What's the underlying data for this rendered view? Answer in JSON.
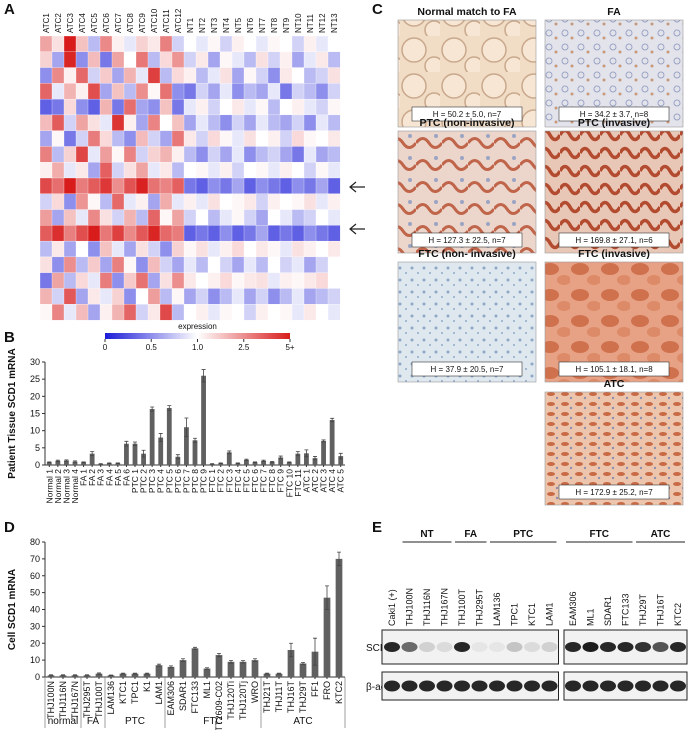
{
  "panel_letters": [
    "A",
    "B",
    "C",
    "D",
    "E"
  ],
  "chart_data": [
    {
      "type": "heatmap",
      "categories": [
        "ATC1",
        "ATC2",
        "ATC3",
        "ATC4",
        "ATC5",
        "ATC6",
        "ATC7",
        "ATC8",
        "ATC9",
        "ATC10",
        "ATC11",
        "ATC12",
        "NT1",
        "NT2",
        "NT3",
        "NT4",
        "NT5",
        "NT6",
        "NT7",
        "NT8",
        "NT9",
        "NT10",
        "NT11",
        "NT12",
        "NT13"
      ],
      "values": [
        [
          2.2,
          1.4,
          5.5,
          1.8,
          0.7,
          2.6,
          1.2,
          0.9,
          1.6,
          1.3,
          2.8,
          0.8,
          1.0,
          0.9,
          1.1,
          0.8,
          1.2,
          1.0,
          0.9,
          1.1,
          1.0,
          0.8,
          1.2,
          0.9,
          1.0
        ],
        [
          1.6,
          0.6,
          4.8,
          0.5,
          1.9,
          0.4,
          2.2,
          1.0,
          3.0,
          0.7,
          1.5,
          2.4,
          0.8,
          1.3,
          0.6,
          1.1,
          0.9,
          0.7,
          1.4,
          0.8,
          1.2,
          0.6,
          0.9,
          1.3,
          0.7
        ],
        [
          0.5,
          2.6,
          1.2,
          3.3,
          0.8,
          1.7,
          0.6,
          2.0,
          0.9,
          4.2,
          0.7,
          1.5,
          1.2,
          0.7,
          0.9,
          1.4,
          0.6,
          1.1,
          0.8,
          0.5,
          1.3,
          1.0,
          0.7,
          0.8,
          1.4
        ],
        [
          3.4,
          0.9,
          2.0,
          1.2,
          3.9,
          0.6,
          1.8,
          0.7,
          2.5,
          1.1,
          3.1,
          0.5,
          0.4,
          0.8,
          0.6,
          0.9,
          0.5,
          0.7,
          0.6,
          0.9,
          0.4,
          0.8,
          0.7,
          0.5,
          0.8
        ],
        [
          0.3,
          0.4,
          1.5,
          0.5,
          0.3,
          2.0,
          0.4,
          3.2,
          0.6,
          0.5,
          1.8,
          0.4,
          0.9,
          1.2,
          0.8,
          1.0,
          1.3,
          0.9,
          1.1,
          0.7,
          1.0,
          1.2,
          0.9,
          0.8,
          1.1
        ],
        [
          1.9,
          3.6,
          0.8,
          2.2,
          1.4,
          0.9,
          4.5,
          1.2,
          0.6,
          2.7,
          1.0,
          1.8,
          0.6,
          0.9,
          0.7,
          0.5,
          0.8,
          0.6,
          0.9,
          0.7,
          0.6,
          0.8,
          0.5,
          0.9,
          0.7
        ],
        [
          0.6,
          1.1,
          0.4,
          0.8,
          2.9,
          1.5,
          0.7,
          0.5,
          1.9,
          0.8,
          0.6,
          3.0,
          1.3,
          0.8,
          1.5,
          1.1,
          0.9,
          1.4,
          1.0,
          1.2,
          0.8,
          1.5,
          1.1,
          1.0,
          1.3
        ],
        [
          2.8,
          0.7,
          1.6,
          4.1,
          0.9,
          2.3,
          1.1,
          2.7,
          0.8,
          1.6,
          2.0,
          1.2,
          0.7,
          0.5,
          0.8,
          0.6,
          0.9,
          0.5,
          0.7,
          0.8,
          0.6,
          0.4,
          0.9,
          0.6,
          0.7
        ],
        [
          1.2,
          2.1,
          0.9,
          1.3,
          0.6,
          3.5,
          0.8,
          1.4,
          2.2,
          0.9,
          1.3,
          0.7,
          1.0,
          1.1,
          0.9,
          1.2,
          0.8,
          1.0,
          1.1,
          0.9,
          1.2,
          1.0,
          0.8,
          1.1,
          0.9
        ],
        [
          4.0,
          3.2,
          5.2,
          2.9,
          3.6,
          4.4,
          2.5,
          3.8,
          4.9,
          3.1,
          2.7,
          3.5,
          0.4,
          0.3,
          0.5,
          0.4,
          0.6,
          0.3,
          0.5,
          0.4,
          0.3,
          0.5,
          0.4,
          0.6,
          0.3
        ],
        [
          0.8,
          1.5,
          0.5,
          2.4,
          1.1,
          0.7,
          3.3,
          0.9,
          1.2,
          0.6,
          2.1,
          0.9,
          1.2,
          0.9,
          1.4,
          1.0,
          1.1,
          1.3,
          0.8,
          1.2,
          1.0,
          1.1,
          1.4,
          0.9,
          1.2
        ],
        [
          2.3,
          0.6,
          1.8,
          0.9,
          2.6,
          1.4,
          0.8,
          2.0,
          0.7,
          3.4,
          1.1,
          2.2,
          0.8,
          1.0,
          0.7,
          0.9,
          1.1,
          0.8,
          0.6,
          1.0,
          0.9,
          0.7,
          0.8,
          1.0,
          0.9
        ],
        [
          3.6,
          4.6,
          2.8,
          3.9,
          5.1,
          3.0,
          4.2,
          2.6,
          3.7,
          4.8,
          3.3,
          2.9,
          0.3,
          0.4,
          0.3,
          0.5,
          0.3,
          0.4,
          0.6,
          0.3,
          0.4,
          0.3,
          0.5,
          0.4,
          0.3
        ],
        [
          0.7,
          1.3,
          0.6,
          1.0,
          0.5,
          1.8,
          0.9,
          0.6,
          1.4,
          0.8,
          0.5,
          1.6,
          1.1,
          1.4,
          0.9,
          1.2,
          1.5,
          1.0,
          1.3,
          1.1,
          0.9,
          1.4,
          1.2,
          1.0,
          1.3
        ],
        [
          1.4,
          0.5,
          2.5,
          0.7,
          1.7,
          0.6,
          2.8,
          1.1,
          0.5,
          1.9,
          0.8,
          0.6,
          0.9,
          0.7,
          1.0,
          0.8,
          0.6,
          0.9,
          0.7,
          1.0,
          0.8,
          0.9,
          0.6,
          0.8,
          1.0
        ],
        [
          0.4,
          2.2,
          0.7,
          1.5,
          0.9,
          2.9,
          0.5,
          1.7,
          3.1,
          0.6,
          1.4,
          2.5,
          1.3,
          1.0,
          1.2,
          1.5,
          1.1,
          1.3,
          1.4,
          0.9,
          1.2,
          1.1,
          1.3,
          1.5,
          1.0
        ],
        [
          2.0,
          0.8,
          3.7,
          0.6,
          1.3,
          0.9,
          1.6,
          0.5,
          1.0,
          2.3,
          0.7,
          1.1,
          0.6,
          0.8,
          0.5,
          0.7,
          0.9,
          0.6,
          0.8,
          0.5,
          0.7,
          0.9,
          0.6,
          0.7,
          0.8
        ],
        [
          1.1,
          2.7,
          0.9,
          1.9,
          0.6,
          1.2,
          2.0,
          3.4,
          0.8,
          1.3,
          4.0,
          0.7,
          1.0,
          1.2,
          0.9,
          1.1,
          1.0,
          0.8,
          1.2,
          1.0,
          1.1,
          0.9,
          1.3,
          1.0,
          0.9
        ]
      ],
      "colorbar_label": "expression",
      "colorbar_ticks": [
        0,
        0.5,
        {
          "value": 1,
          "label": "1.0"
        },
        2.5,
        {
          "value": 5,
          "label": "5+"
        }
      ],
      "colors": [
        "#1c1cd8",
        "#ffffff",
        "#d81c1c"
      ]
    },
    {
      "type": "bar",
      "y_label": "Patient Tissue SCD1 mRNA",
      "categories": [
        "Normal 1",
        "Normal 2",
        "Normal 3",
        "Normal 4",
        "FA 1",
        "FA 2",
        "FA 3",
        "FA 4",
        "FA 5",
        "FA 6",
        "PTC 1",
        "PTC 2",
        "PTC 3",
        "PTC 4",
        "PTC 5",
        "PTC 6",
        "PTC 7",
        "PTC 8",
        "PTC 9",
        "FTC 1",
        "FTC 2",
        "FTC 3",
        "FTC 4",
        "FTC 5",
        "FTC 6",
        "FTC 7",
        "FTC 8",
        "FTC 9",
        "FTC 10",
        "FTC 11",
        "ATC 1",
        "ATC 2",
        "ATC 3",
        "ATC 4",
        "ATC 5"
      ],
      "values": [
        0.8,
        1.2,
        1.3,
        1.0,
        0.8,
        3.3,
        0.3,
        0.5,
        0.5,
        6.2,
        6.2,
        3.3,
        16.3,
        8.0,
        16.6,
        2.4,
        11.0,
        7.2,
        26.0,
        0.3,
        0.5,
        3.7,
        0.5,
        1.5,
        0.8,
        1.2,
        0.9,
        2.2,
        0.8,
        3.3,
        3.4,
        2.0,
        7.0,
        13.1,
        2.6
      ],
      "errors": [
        0.1,
        0.2,
        0.2,
        0.2,
        0.1,
        0.6,
        0.1,
        0.1,
        0.1,
        0.7,
        0.5,
        1.0,
        0.6,
        1.2,
        0.7,
        0.6,
        2.7,
        0.6,
        1.8,
        0.1,
        0.1,
        0.4,
        0.1,
        0.2,
        0.1,
        0.2,
        0.1,
        0.4,
        0.1,
        0.6,
        1.0,
        0.5,
        0.3,
        0.5,
        0.8
      ],
      "color": "#606060",
      "ylim": [
        0,
        30
      ],
      "yticks": [
        0,
        5,
        10,
        15,
        20,
        25,
        30
      ]
    },
    {
      "type": "bar",
      "y_label": "Cell SCD1 mRNA",
      "groups": [
        {
          "name": "normal",
          "categories": [
            "THJ100N",
            "THJ116N",
            "THJ167N"
          ]
        },
        {
          "name": "FA",
          "categories": [
            "THJ295T",
            "THJ100T"
          ]
        },
        {
          "name": "PTC",
          "categories": [
            "LAM136",
            "KTC1",
            "TPC1",
            "K1",
            "LAM1"
          ]
        },
        {
          "name": "FTC",
          "categories": [
            "EAM306",
            "SDAR1",
            "FTC133",
            "ML1",
            "TT2609-C02",
            "THJ120Ti",
            "THJ120Tj",
            "WRO"
          ]
        },
        {
          "name": "ATC",
          "categories": [
            "THJ21T",
            "THJ11T",
            "THJ16T",
            "THJ29T",
            "FF1",
            "FRO",
            "KTC2"
          ]
        }
      ],
      "values": [
        1,
        1,
        1,
        1,
        2,
        1,
        2,
        2,
        2,
        7,
        6,
        10,
        17,
        5,
        13,
        9,
        9,
        10,
        2,
        2,
        16,
        8,
        15,
        47,
        70
      ],
      "errors": [
        0.3,
        0.3,
        0.3,
        0.3,
        0.4,
        0.2,
        0.3,
        0.3,
        0.3,
        0.6,
        0.6,
        0.8,
        0.6,
        0.5,
        1.0,
        0.8,
        0.7,
        0.8,
        0.3,
        0.3,
        4,
        0.6,
        8,
        7,
        4
      ],
      "color": "#606060",
      "ylim": [
        0,
        80
      ],
      "yticks": [
        0,
        10,
        20,
        30,
        40,
        50,
        60,
        70,
        80
      ]
    }
  ],
  "histology": [
    {
      "title": "Normal match to FA",
      "h_label": "H = 50.2 ± 5.0, n=7"
    },
    {
      "title": "FA",
      "h_label": "H = 34.2 ± 3.7, n=8"
    },
    {
      "title": "PTC (non-invasive)",
      "h_label": "H = 127.3 ± 22.5, n=7"
    },
    {
      "title": "PTC (invasive)",
      "h_label": "H = 169.8 ± 27.1, n=6"
    },
    {
      "title": "FTC (non- invasive)",
      "h_label": "H = 37.9 ± 20.5, n=7"
    },
    {
      "title": "FTC (invasive)",
      "h_label": "H = 105.1 ± 18.1, n=8"
    },
    {
      "title": "ATC",
      "h_label": "H = 172.9 ± 25.2, n=7"
    }
  ],
  "blot": {
    "control_lane": "Caki1 (+)",
    "groups": [
      {
        "name": "NT",
        "lanes": [
          "THJ100N",
          "THJ116N",
          "THJ167N"
        ]
      },
      {
        "name": "FA",
        "lanes": [
          "THJ100T",
          "THJ295T"
        ]
      },
      {
        "name": "PTC",
        "lanes": [
          "LAM136",
          "TPC1",
          "KTC1",
          "LAM1"
        ]
      },
      {
        "name": "FTC",
        "lanes": [
          "EAM306",
          "ML1",
          "SDAR1",
          "FTC133"
        ]
      },
      {
        "name": "ATC",
        "lanes": [
          "THJ29T",
          "THJ16T",
          "KTC2"
        ]
      }
    ],
    "rows": [
      "SCD1",
      "β-actin"
    ]
  }
}
